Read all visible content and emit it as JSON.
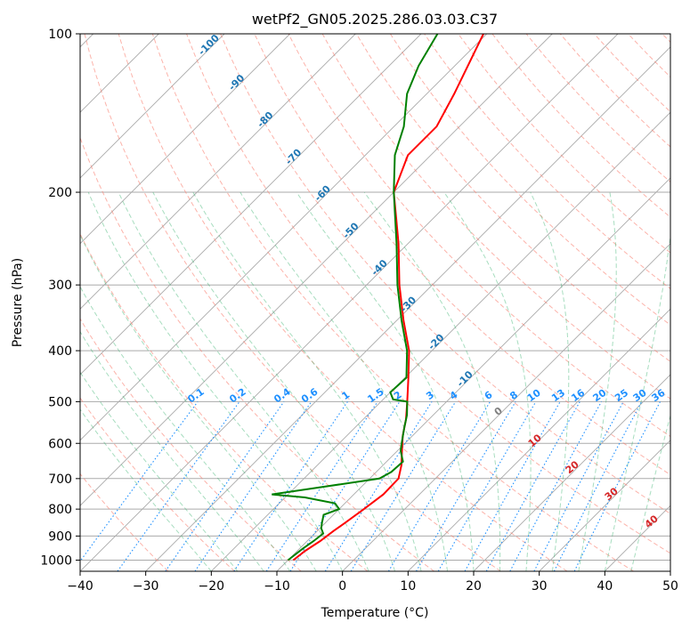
{
  "chart_data": {
    "type": "line",
    "title": "wetPf2_GN05.2025.286.03.03.C37",
    "xlabel": "Temperature (°C)",
    "ylabel": "Pressure (hPa)",
    "xlim": [
      -40,
      50
    ],
    "ylim": [
      1050,
      100
    ],
    "y_scale": "log",
    "skew": true,
    "grid": true,
    "x_ticks": [
      -40,
      -30,
      -20,
      -10,
      0,
      10,
      20,
      30,
      40,
      50
    ],
    "y_ticks": [
      100,
      200,
      300,
      400,
      500,
      600,
      700,
      800,
      900,
      1000
    ],
    "colors": {
      "temperature": "#ff0000",
      "dewpoint": "#008000",
      "isotherm": "#aaaaaa",
      "dry_adiabat": "#fa8072",
      "moist_adiabat": "#3cb371",
      "mixing_ratio": "#1e90ff",
      "isotherm_label": "#1f77b4",
      "moist_label": "#d62728"
    },
    "series": [
      {
        "name": "",
        "color": "#ff0000",
        "points": [
          [
            1000,
            -9.2
          ],
          [
            960,
            -8.8
          ],
          [
            920,
            -8.0
          ],
          [
            880,
            -7.5
          ],
          [
            850,
            -7.0
          ],
          [
            800,
            -6.2
          ],
          [
            750,
            -5.5
          ],
          [
            700,
            -5.6
          ],
          [
            660,
            -7.2
          ],
          [
            620,
            -9.3
          ],
          [
            580,
            -11.5
          ],
          [
            540,
            -13.5
          ],
          [
            500,
            -16.0
          ],
          [
            450,
            -19.5
          ],
          [
            400,
            -23.5
          ],
          [
            350,
            -29.0
          ],
          [
            300,
            -35.0
          ],
          [
            250,
            -41.5
          ],
          [
            200,
            -50.0
          ],
          [
            170,
            -53.5
          ],
          [
            150,
            -53.5
          ],
          [
            130,
            -55.8
          ],
          [
            115,
            -58.0
          ],
          [
            100,
            -60.5
          ]
        ]
      },
      {
        "name": "",
        "color": "#008000",
        "points": [
          [
            1000,
            -10.0
          ],
          [
            950,
            -9.5
          ],
          [
            920,
            -9.0
          ],
          [
            890,
            -8.7
          ],
          [
            870,
            -9.8
          ],
          [
            850,
            -10.5
          ],
          [
            820,
            -11.5
          ],
          [
            800,
            -10.0
          ],
          [
            780,
            -11.5
          ],
          [
            760,
            -17.0
          ],
          [
            750,
            -22.5
          ],
          [
            730,
            -17.0
          ],
          [
            700,
            -8.5
          ],
          [
            680,
            -7.7
          ],
          [
            650,
            -7.5
          ],
          [
            620,
            -9.5
          ],
          [
            600,
            -10.5
          ],
          [
            560,
            -12.5
          ],
          [
            530,
            -14.0
          ],
          [
            500,
            -16.0
          ],
          [
            495,
            -18.5
          ],
          [
            480,
            -20.0
          ],
          [
            450,
            -19.8
          ],
          [
            400,
            -23.8
          ],
          [
            350,
            -29.3
          ],
          [
            300,
            -35.3
          ],
          [
            250,
            -41.8
          ],
          [
            200,
            -50.0
          ],
          [
            170,
            -55.5
          ],
          [
            150,
            -58.5
          ],
          [
            130,
            -63.0
          ],
          [
            115,
            -65.5
          ],
          [
            100,
            -67.5
          ]
        ]
      }
    ],
    "isotherm_labels": [
      "-100",
      "-90",
      "-80",
      "-70",
      "-60",
      "-50",
      "-40",
      "-30",
      "-20",
      "-10"
    ],
    "mixing_ratio_labels": [
      "0.1",
      "0.2",
      "0.4",
      "0.6",
      "1",
      "1.5",
      "2",
      "3",
      "4",
      "6",
      "8",
      "10",
      "13",
      "16",
      "20",
      "25",
      "30",
      "36"
    ],
    "mixing_ratio_values": [
      0.1,
      0.2,
      0.4,
      0.6,
      1,
      1.5,
      2,
      3,
      4,
      6,
      8,
      10,
      13,
      16,
      20,
      25,
      30,
      36
    ],
    "moist_labels": [
      "0",
      "10",
      "20",
      "30",
      "40"
    ]
  }
}
